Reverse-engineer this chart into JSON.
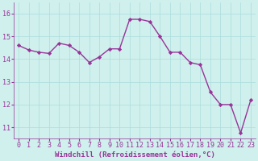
{
  "x": [
    0,
    1,
    2,
    3,
    4,
    5,
    6,
    7,
    8,
    9,
    10,
    11,
    12,
    13,
    14,
    15,
    16,
    17,
    18,
    19,
    20,
    21,
    22,
    23
  ],
  "y": [
    14.6,
    14.4,
    14.3,
    14.25,
    14.7,
    14.6,
    14.3,
    13.85,
    14.1,
    14.45,
    14.45,
    15.75,
    15.75,
    15.65,
    15.0,
    14.3,
    14.3,
    13.85,
    13.75,
    12.55,
    12.0,
    12.0,
    10.75,
    12.2
  ],
  "line_color": "#993399",
  "marker": "D",
  "marker_size": 2.2,
  "bg_color": "#cff0ec",
  "grid_color": "#aadddd",
  "xlabel": "Windchill (Refroidissement éolien,°C)",
  "xlabel_fontsize": 6.5,
  "ylim": [
    10.5,
    16.5
  ],
  "yticks": [
    11,
    12,
    13,
    14,
    15,
    16
  ],
  "xticks": [
    0,
    1,
    2,
    3,
    4,
    5,
    6,
    7,
    8,
    9,
    10,
    11,
    12,
    13,
    14,
    15,
    16,
    17,
    18,
    19,
    20,
    21,
    22,
    23
  ],
  "tick_fontsize": 6,
  "line_width": 1.0
}
